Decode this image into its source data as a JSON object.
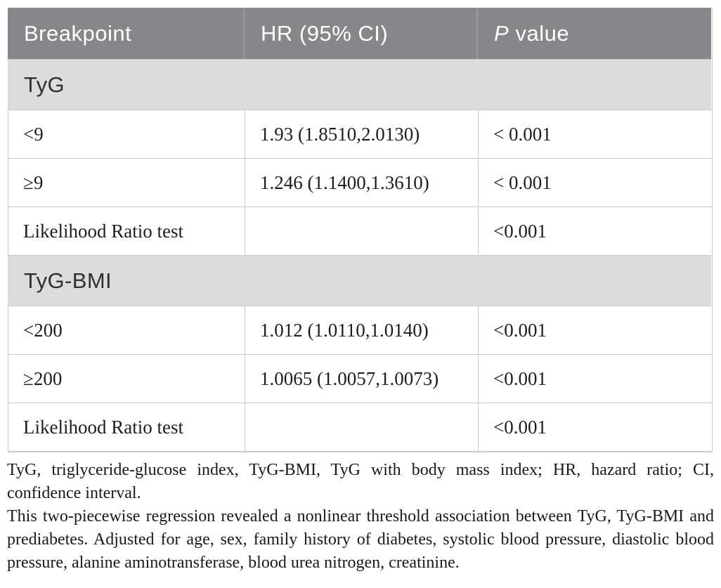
{
  "table": {
    "header": {
      "breakpoint": "Breakpoint",
      "hr_ci": "HR (95% CI)",
      "p_italic": "P",
      "p_rest": "value"
    },
    "sections": [
      {
        "label": "TyG",
        "rows": [
          {
            "breakpoint": "<9",
            "hr_ci": "1.93 (1.8510,2.0130)",
            "p_value": "< 0.001"
          },
          {
            "breakpoint": "≥9",
            "hr_ci": "1.246 (1.1400,1.3610)",
            "p_value": "< 0.001"
          },
          {
            "breakpoint": "Likelihood Ratio test",
            "hr_ci": "",
            "p_value": "<0.001"
          }
        ]
      },
      {
        "label": "TyG-BMI",
        "rows": [
          {
            "breakpoint": "<200",
            "hr_ci": "1.012 (1.0110,1.0140)",
            "p_value": "<0.001"
          },
          {
            "breakpoint": "≥200",
            "hr_ci": "1.0065 (1.0057,1.0073)",
            "p_value": "<0.001"
          },
          {
            "breakpoint": "Likelihood Ratio test",
            "hr_ci": "",
            "p_value": "<0.001"
          }
        ]
      }
    ]
  },
  "footnotes": {
    "abbreviations": "TyG, triglyceride-glucose index, TyG-BMI, TyG with body mass index; HR, hazard ratio; CI, confidence interval.",
    "note": "This two-piecewise regression revealed a nonlinear threshold association between TyG, TyG-BMI and prediabetes. Adjusted for age, sex, family history of diabetes, systolic blood pressure, diastolic blood pressure, alanine aminotransferase, blood urea nitrogen, creatinine."
  },
  "colors": {
    "header_bg": "#85878a",
    "header_divider": "#9a9c9f",
    "header_text": "#ffffff",
    "section_bg": "#dcdcdd",
    "section_text": "#2f3033",
    "border": "#c8cacc",
    "cell_text": "#1e1e1e",
    "foot_text": "#1a1a1a"
  }
}
